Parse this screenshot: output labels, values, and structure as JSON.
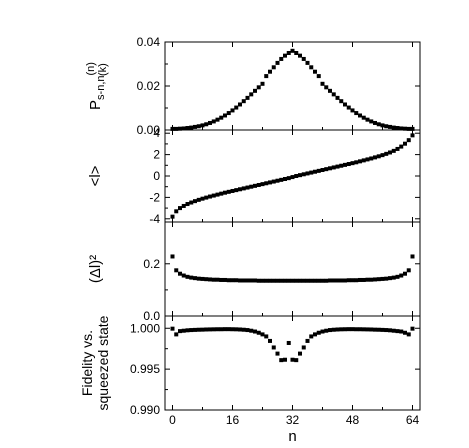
{
  "chart_data": [
    {
      "type": "scatter",
      "panel": "top",
      "ylabel": "P_{s-n,n}(k^(n))",
      "ylabel_main": "P",
      "ylabel_sub": "s-n,n",
      "ylabel_paren_top": "(n)",
      "ylabel_paren_bottom": "(k)",
      "ylim": [
        0,
        0.04
      ],
      "yticks": [
        0.0,
        0.02,
        0.04
      ],
      "ytick_labels": [
        "0.00",
        "0.02",
        "0.04"
      ],
      "x": [
        0,
        1,
        2,
        3,
        4,
        5,
        6,
        7,
        8,
        9,
        10,
        11,
        12,
        13,
        14,
        15,
        16,
        17,
        18,
        19,
        20,
        21,
        22,
        23,
        24,
        25,
        26,
        27,
        28,
        29,
        30,
        31,
        32,
        33,
        34,
        35,
        36,
        37,
        38,
        39,
        40,
        41,
        42,
        43,
        44,
        45,
        46,
        47,
        48,
        49,
        50,
        51,
        52,
        53,
        54,
        55,
        56,
        57,
        58,
        59,
        60,
        61,
        62,
        63,
        64
      ],
      "y": [
        0.0005,
        0.0005,
        0.0006,
        0.0007,
        0.0009,
        0.0011,
        0.0014,
        0.0017,
        0.0021,
        0.0026,
        0.0032,
        0.0039,
        0.0047,
        0.0056,
        0.0066,
        0.0077,
        0.0089,
        0.0102,
        0.0116,
        0.0131,
        0.0146,
        0.0162,
        0.0178,
        0.0194,
        0.021,
        0.0245,
        0.0265,
        0.0285,
        0.0305,
        0.0323,
        0.0338,
        0.035,
        0.036,
        0.035,
        0.0338,
        0.0323,
        0.0305,
        0.0285,
        0.0265,
        0.0245,
        0.021,
        0.0194,
        0.0178,
        0.0162,
        0.0146,
        0.0131,
        0.0116,
        0.0102,
        0.0089,
        0.0077,
        0.0066,
        0.0056,
        0.0047,
        0.0039,
        0.0032,
        0.0026,
        0.0021,
        0.0017,
        0.0014,
        0.0011,
        0.0009,
        0.0007,
        0.0006,
        0.0005,
        0.0005
      ]
    },
    {
      "type": "scatter",
      "panel": "second",
      "ylabel": "<l>",
      "ylim": [
        -4.3,
        4.3
      ],
      "yticks": [
        -4,
        -2,
        0,
        2,
        4
      ],
      "ytick_labels": [
        "-4",
        "-2",
        "0",
        "2",
        "4"
      ],
      "x": [
        0,
        1,
        2,
        3,
        4,
        5,
        6,
        7,
        8,
        9,
        10,
        11,
        12,
        13,
        14,
        15,
        16,
        17,
        18,
        19,
        20,
        21,
        22,
        23,
        24,
        25,
        26,
        27,
        28,
        29,
        30,
        31,
        32,
        33,
        34,
        35,
        36,
        37,
        38,
        39,
        40,
        41,
        42,
        43,
        44,
        45,
        46,
        47,
        48,
        49,
        50,
        51,
        52,
        53,
        54,
        55,
        56,
        57,
        58,
        59,
        60,
        61,
        62,
        63,
        64
      ],
      "y": [
        -3.8,
        -3.3,
        -3.0,
        -2.8,
        -2.62,
        -2.48,
        -2.35,
        -2.23,
        -2.12,
        -2.02,
        -1.92,
        -1.83,
        -1.74,
        -1.65,
        -1.56,
        -1.48,
        -1.4,
        -1.32,
        -1.24,
        -1.16,
        -1.08,
        -1.0,
        -0.92,
        -0.84,
        -0.76,
        -0.68,
        -0.6,
        -0.52,
        -0.44,
        -0.36,
        -0.28,
        -0.2,
        -0.1,
        0.0,
        0.08,
        0.16,
        0.24,
        0.32,
        0.4,
        0.48,
        0.56,
        0.64,
        0.72,
        0.8,
        0.88,
        0.96,
        1.04,
        1.12,
        1.2,
        1.28,
        1.37,
        1.46,
        1.55,
        1.64,
        1.74,
        1.84,
        1.95,
        2.07,
        2.2,
        2.35,
        2.53,
        2.75,
        3.02,
        3.35,
        3.8
      ]
    },
    {
      "type": "scatter",
      "panel": "third",
      "ylabel": "(Δl)²",
      "ylim": [
        0,
        0.36
      ],
      "yticks": [
        0.0,
        0.2
      ],
      "ytick_labels": [
        "0.0",
        "0.2"
      ],
      "x": [
        0,
        1,
        2,
        3,
        4,
        5,
        6,
        7,
        8,
        9,
        10,
        11,
        12,
        13,
        14,
        15,
        16,
        17,
        18,
        19,
        20,
        21,
        22,
        23,
        24,
        25,
        26,
        27,
        28,
        29,
        30,
        31,
        32,
        33,
        34,
        35,
        36,
        37,
        38,
        39,
        40,
        41,
        42,
        43,
        44,
        45,
        46,
        47,
        48,
        49,
        50,
        51,
        52,
        53,
        54,
        55,
        56,
        57,
        58,
        59,
        60,
        61,
        62,
        63,
        64
      ],
      "y": [
        0.228,
        0.175,
        0.162,
        0.155,
        0.15,
        0.147,
        0.145,
        0.143,
        0.142,
        0.141,
        0.14,
        0.139,
        0.139,
        0.138,
        0.138,
        0.137,
        0.137,
        0.137,
        0.136,
        0.136,
        0.136,
        0.136,
        0.136,
        0.135,
        0.135,
        0.135,
        0.135,
        0.135,
        0.135,
        0.135,
        0.135,
        0.135,
        0.135,
        0.135,
        0.135,
        0.135,
        0.135,
        0.135,
        0.135,
        0.135,
        0.135,
        0.135,
        0.136,
        0.136,
        0.136,
        0.136,
        0.136,
        0.137,
        0.137,
        0.137,
        0.138,
        0.138,
        0.139,
        0.139,
        0.14,
        0.141,
        0.142,
        0.143,
        0.145,
        0.147,
        0.15,
        0.155,
        0.162,
        0.175,
        0.228
      ]
    },
    {
      "type": "scatter",
      "panel": "bottom",
      "ylabel": "Fidelity vs. squeezed state",
      "ylabel_line1": "Fidelity vs.",
      "ylabel_line2": "squeezed state",
      "xlabel": "n",
      "xlim": [
        -2,
        66
      ],
      "xticks": [
        0,
        16,
        32,
        48,
        64
      ],
      "xtick_labels": [
        "0",
        "16",
        "32",
        "48",
        "64"
      ],
      "ylim": [
        0.99,
        1.0015
      ],
      "yticks": [
        0.99,
        0.995,
        1.0
      ],
      "ytick_labels": [
        "0.990",
        "0.995",
        "1.000"
      ],
      "x": [
        0,
        1,
        2,
        3,
        4,
        5,
        6,
        7,
        8,
        9,
        10,
        11,
        12,
        13,
        14,
        15,
        16,
        17,
        18,
        19,
        20,
        21,
        22,
        23,
        24,
        25,
        26,
        27,
        28,
        29,
        30,
        31,
        32,
        33,
        34,
        35,
        36,
        37,
        38,
        39,
        40,
        41,
        42,
        43,
        44,
        45,
        46,
        47,
        48,
        49,
        50,
        51,
        52,
        53,
        54,
        55,
        56,
        57,
        58,
        59,
        60,
        61,
        62,
        63,
        64
      ],
      "y": [
        0.99995,
        0.99925,
        0.99965,
        0.9997,
        0.99975,
        0.99978,
        0.9998,
        0.99982,
        0.99983,
        0.99985,
        0.99986,
        0.99987,
        0.99988,
        0.99988,
        0.99989,
        0.99989,
        0.99988,
        0.99987,
        0.99985,
        0.99982,
        0.99978,
        0.9997,
        0.9996,
        0.99945,
        0.99925,
        0.999,
        0.99845,
        0.99765,
        0.9969,
        0.9961,
        0.99615,
        0.9982,
        0.99615,
        0.9961,
        0.9969,
        0.99765,
        0.99845,
        0.999,
        0.99925,
        0.99945,
        0.9996,
        0.9997,
        0.99978,
        0.99982,
        0.99985,
        0.99987,
        0.99988,
        0.99989,
        0.99989,
        0.99988,
        0.99988,
        0.99987,
        0.99986,
        0.99985,
        0.99983,
        0.99982,
        0.9998,
        0.99978,
        0.99975,
        0.9997,
        0.99965,
        0.9996,
        0.99945,
        0.99925,
        0.99995
      ]
    }
  ]
}
